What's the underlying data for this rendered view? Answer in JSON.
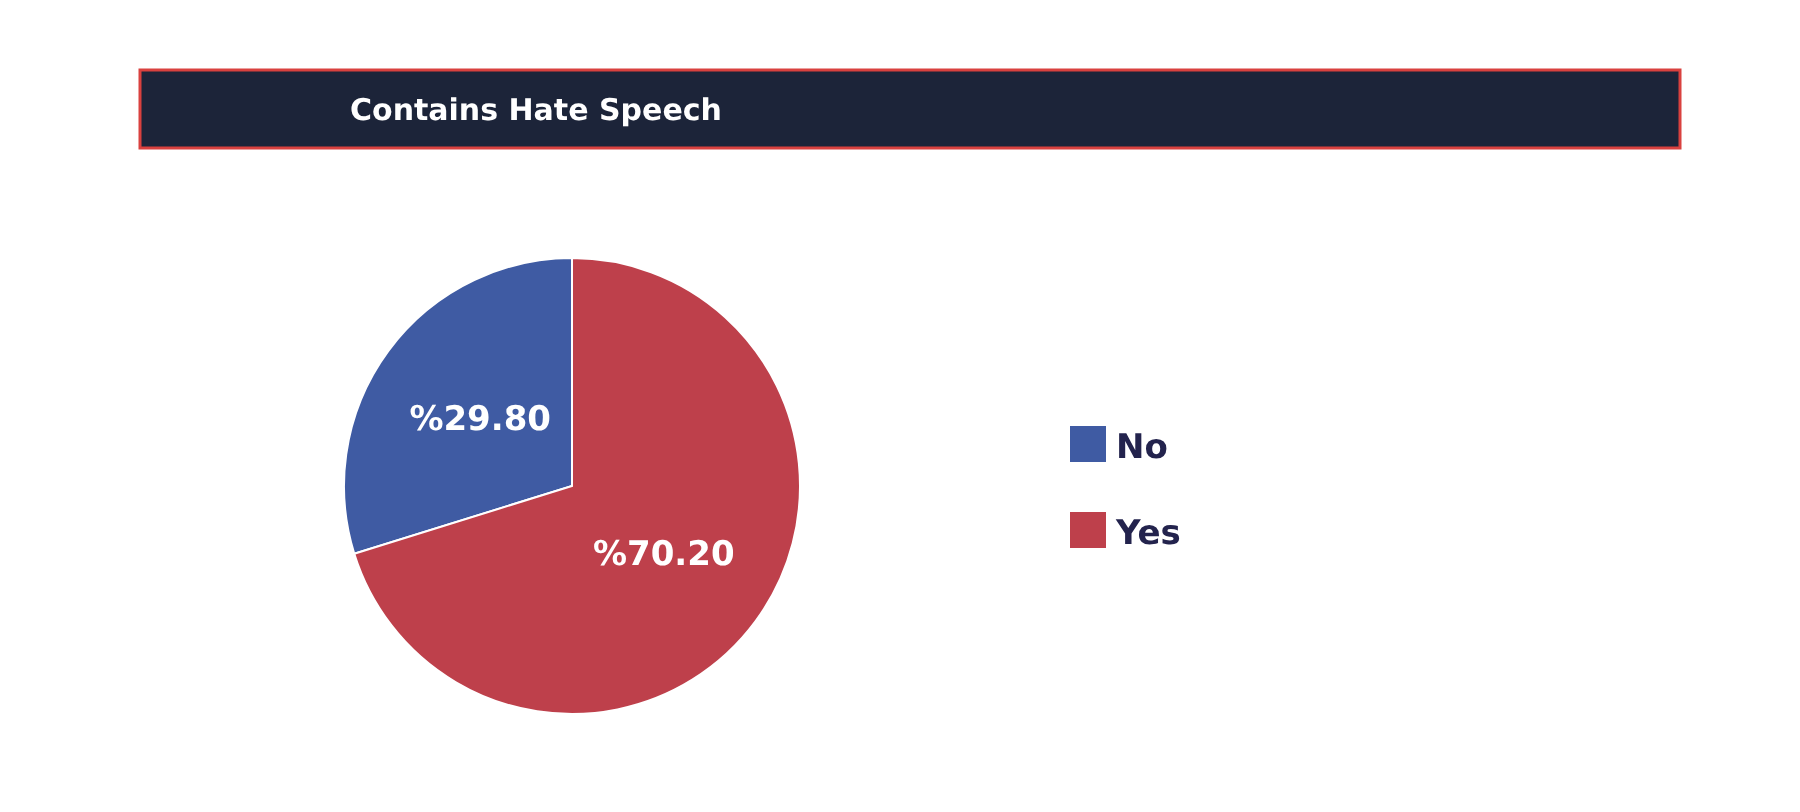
{
  "chart_data": {
    "type": "pie",
    "title": "Contains Hate Speech",
    "categories": [
      "No",
      "Yes"
    ],
    "values": [
      29.8,
      70.2
    ],
    "colors": [
      "#3f5ba3",
      "#be404b"
    ],
    "value_labels": [
      "%29.80",
      "%70.20"
    ],
    "legend": "right"
  }
}
